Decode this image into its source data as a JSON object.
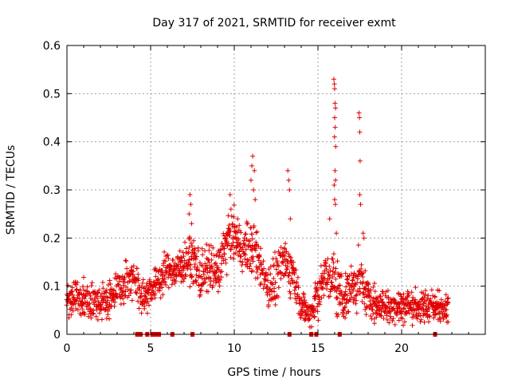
{
  "chart_data": {
    "type": "scatter",
    "title": "Day 317 of 2021, SRMTID for receiver exmt",
    "xlabel": "GPS time / hours",
    "ylabel": "SRMTID / TECUs",
    "xlim": [
      0,
      25
    ],
    "ylim": [
      0,
      0.6
    ],
    "x_ticks": [
      0,
      5,
      10,
      15,
      20
    ],
    "x_tick_labels": [
      "0",
      "5",
      "10",
      "15",
      "20"
    ],
    "y_ticks": [
      0,
      0.1,
      0.2,
      0.3,
      0.4,
      0.5,
      0.6
    ],
    "y_tick_labels": [
      "0",
      "0.1",
      "0.2",
      "0.3",
      "0.4",
      "0.5",
      "0.6"
    ],
    "grid": true,
    "marker": "plus",
    "color": "#e00000",
    "gap_markers_x": [
      4.2,
      4.4,
      4.8,
      5.1,
      5.3,
      5.5,
      6.3,
      7.5,
      13.3,
      14.6,
      14.9,
      16.3,
      22.0
    ],
    "envelope": [
      [
        0.0,
        0.07,
        0.03
      ],
      [
        0.5,
        0.08,
        0.03
      ],
      [
        1.0,
        0.07,
        0.03
      ],
      [
        1.5,
        0.07,
        0.03
      ],
      [
        2.0,
        0.065,
        0.03
      ],
      [
        2.5,
        0.07,
        0.03
      ],
      [
        3.0,
        0.1,
        0.03
      ],
      [
        3.5,
        0.11,
        0.03
      ],
      [
        4.0,
        0.12,
        0.03
      ],
      [
        4.5,
        0.07,
        0.03
      ],
      [
        5.0,
        0.1,
        0.03
      ],
      [
        5.5,
        0.11,
        0.03
      ],
      [
        6.0,
        0.14,
        0.03
      ],
      [
        6.5,
        0.13,
        0.03
      ],
      [
        7.0,
        0.15,
        0.035
      ],
      [
        7.5,
        0.16,
        0.04
      ],
      [
        8.0,
        0.12,
        0.04
      ],
      [
        8.5,
        0.14,
        0.04
      ],
      [
        9.0,
        0.13,
        0.04
      ],
      [
        9.5,
        0.19,
        0.04
      ],
      [
        10.0,
        0.21,
        0.04
      ],
      [
        10.5,
        0.17,
        0.04
      ],
      [
        11.0,
        0.19,
        0.05
      ],
      [
        11.5,
        0.15,
        0.04
      ],
      [
        12.0,
        0.1,
        0.04
      ],
      [
        12.5,
        0.11,
        0.04
      ],
      [
        13.0,
        0.15,
        0.04
      ],
      [
        13.5,
        0.13,
        0.04
      ],
      [
        14.0,
        0.06,
        0.025
      ],
      [
        14.5,
        0.04,
        0.02
      ],
      [
        15.0,
        0.09,
        0.04
      ],
      [
        15.5,
        0.12,
        0.05
      ],
      [
        16.0,
        0.11,
        0.05
      ],
      [
        16.5,
        0.07,
        0.04
      ],
      [
        17.0,
        0.1,
        0.04
      ],
      [
        17.5,
        0.11,
        0.045
      ],
      [
        18.0,
        0.08,
        0.035
      ],
      [
        18.5,
        0.06,
        0.03
      ],
      [
        19.0,
        0.06,
        0.03
      ],
      [
        19.5,
        0.06,
        0.03
      ],
      [
        20.0,
        0.06,
        0.03
      ],
      [
        20.5,
        0.06,
        0.03
      ],
      [
        21.0,
        0.055,
        0.03
      ],
      [
        21.5,
        0.06,
        0.03
      ],
      [
        22.0,
        0.055,
        0.025
      ],
      [
        22.5,
        0.06,
        0.025
      ],
      [
        22.8,
        0.055,
        0.025
      ]
    ],
    "spikes": [
      [
        7.35,
        0.29
      ],
      [
        7.4,
        0.27
      ],
      [
        7.3,
        0.25
      ],
      [
        7.45,
        0.23
      ],
      [
        9.75,
        0.29
      ],
      [
        9.8,
        0.26
      ],
      [
        10.2,
        0.24
      ],
      [
        11.1,
        0.37
      ],
      [
        11.05,
        0.35
      ],
      [
        11.2,
        0.34
      ],
      [
        11.0,
        0.32
      ],
      [
        11.15,
        0.3
      ],
      [
        11.25,
        0.28
      ],
      [
        13.2,
        0.34
      ],
      [
        13.25,
        0.32
      ],
      [
        13.3,
        0.3
      ],
      [
        13.35,
        0.24
      ],
      [
        15.7,
        0.24
      ],
      [
        15.95,
        0.53
      ],
      [
        15.98,
        0.52
      ],
      [
        16.0,
        0.51
      ],
      [
        16.02,
        0.48
      ],
      [
        16.05,
        0.47
      ],
      [
        16.0,
        0.45
      ],
      [
        16.03,
        0.43
      ],
      [
        15.99,
        0.41
      ],
      [
        16.06,
        0.39
      ],
      [
        16.02,
        0.34
      ],
      [
        16.05,
        0.32
      ],
      [
        15.97,
        0.31
      ],
      [
        16.0,
        0.28
      ],
      [
        16.04,
        0.27
      ],
      [
        16.1,
        0.21
      ],
      [
        17.45,
        0.46
      ],
      [
        17.48,
        0.45
      ],
      [
        17.5,
        0.42
      ],
      [
        17.52,
        0.36
      ],
      [
        17.5,
        0.29
      ],
      [
        17.55,
        0.27
      ],
      [
        17.7,
        0.21
      ],
      [
        17.75,
        0.2
      ]
    ]
  }
}
